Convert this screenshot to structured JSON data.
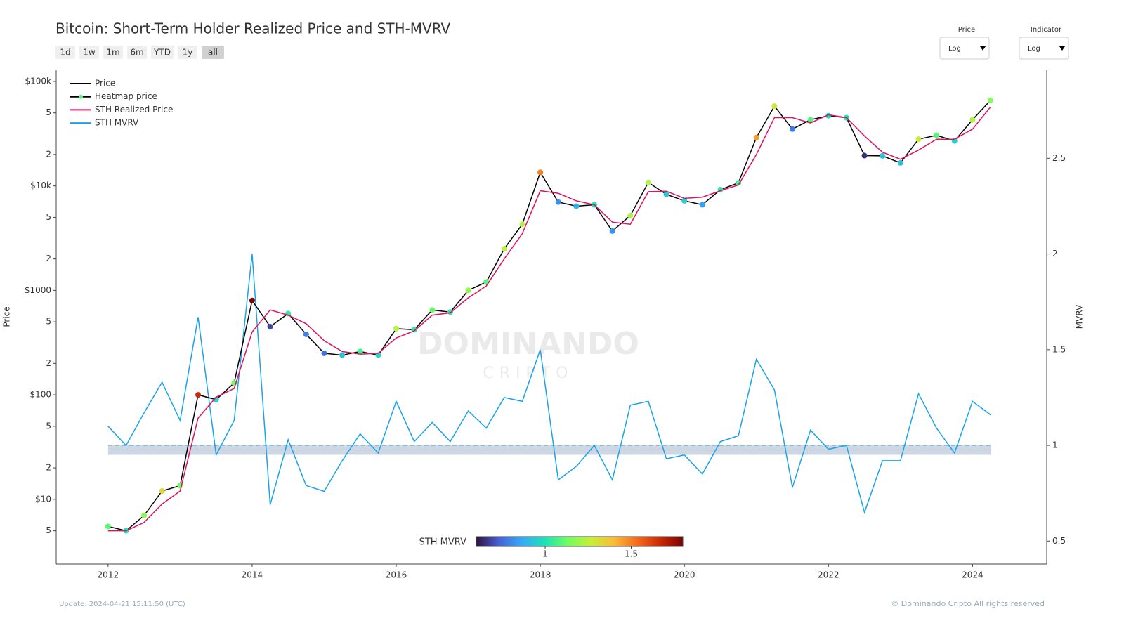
{
  "header": {
    "range_buttons": [
      "1d",
      "1w",
      "1m",
      "6m",
      "YTD",
      "1y",
      "all"
    ],
    "dropdowns": [
      {
        "label": "Price",
        "value": "Log"
      },
      {
        "label": "Indicator",
        "value": "Log"
      }
    ]
  },
  "watermark": {
    "main": "DOMINANDO",
    "sub": "CRIPTO"
  },
  "footer": {
    "update": "Update: 2024-04-21 15:11:50 (UTC)",
    "copyright": "© Dominando Cripto All rights reserved"
  },
  "chart_data": {
    "type": "line",
    "title": "Bitcoin: Short-Term Holder Realized Price and STH-MVRV",
    "ylabel": "Price",
    "y2label": "MVRV",
    "ylog": true,
    "x": [
      2012,
      2012.25,
      2012.5,
      2012.75,
      2013,
      2013.25,
      2013.5,
      2013.75,
      2014,
      2014.25,
      2014.5,
      2014.75,
      2015,
      2015.25,
      2015.5,
      2015.75,
      2016,
      2016.25,
      2016.5,
      2016.75,
      2017,
      2017.25,
      2017.5,
      2017.75,
      2018,
      2018.25,
      2018.5,
      2018.75,
      2019,
      2019.25,
      2019.5,
      2019.75,
      2020,
      2020.25,
      2020.5,
      2020.75,
      2021,
      2021.25,
      2021.5,
      2021.75,
      2022,
      2022.25,
      2022.5,
      2022.75,
      2023,
      2023.25,
      2023.5,
      2023.75,
      2024,
      2024.25
    ],
    "xlim": [
      2011.28,
      2025.03
    ],
    "xticks": [
      2012,
      2014,
      2016,
      2018,
      2020,
      2022,
      2024
    ],
    "ylim": [
      2.4,
      128000
    ],
    "yticks": [
      {
        "value": 100000,
        "label": "$100k"
      },
      {
        "value": 50000,
        "label": "5"
      },
      {
        "value": 20000,
        "label": "2"
      },
      {
        "value": 10000,
        "label": "$10k"
      },
      {
        "value": 5000,
        "label": "5"
      },
      {
        "value": 2000,
        "label": "2"
      },
      {
        "value": 1000,
        "label": "$1000"
      },
      {
        "value": 500,
        "label": "5"
      },
      {
        "value": 200,
        "label": "2"
      },
      {
        "value": 100,
        "label": "$100"
      },
      {
        "value": 50,
        "label": "5"
      },
      {
        "value": 20,
        "label": "2"
      },
      {
        "value": 10,
        "label": "$10"
      },
      5
    ],
    "y2lim": [
      0.38,
      2.96
    ],
    "y2ticks": [
      0.5,
      1,
      1.5,
      2,
      2.5
    ],
    "series": [
      {
        "name": "Price",
        "color": "#000000",
        "values": [
          5.5,
          5,
          7,
          12,
          13.5,
          100,
          90,
          130,
          800,
          450,
          600,
          380,
          250,
          240,
          260,
          240,
          430,
          420,
          650,
          620,
          1000,
          1200,
          2500,
          4300,
          13500,
          7000,
          6400,
          6600,
          3700,
          5200,
          10800,
          8300,
          7200,
          6600,
          9200,
          10700,
          29000,
          58000,
          35000,
          43000,
          47000,
          45000,
          19500,
          19400,
          16600,
          28000,
          30500,
          27000,
          43000,
          66000
        ]
      },
      {
        "name": "STH Realized Price",
        "color": "#e0115f",
        "values": [
          5,
          5,
          6,
          9,
          12,
          60,
          95,
          115,
          400,
          650,
          580,
          480,
          330,
          260,
          245,
          250,
          350,
          410,
          580,
          610,
          850,
          1100,
          2000,
          3500,
          9000,
          8500,
          7200,
          6600,
          4500,
          4300,
          8800,
          8900,
          7600,
          7800,
          9000,
          10200,
          20000,
          45000,
          45000,
          40000,
          48000,
          45000,
          30000,
          21000,
          18000,
          22000,
          28000,
          28000,
          35000,
          57000
        ]
      },
      {
        "name": "STH MVRV",
        "color": "#1aa3e8",
        "axis": "y2",
        "values": [
          1.1,
          1.0,
          1.17,
          1.33,
          1.13,
          1.67,
          0.95,
          1.13,
          2.0,
          0.69,
          1.03,
          0.79,
          0.76,
          0.92,
          1.06,
          0.96,
          1.23,
          1.02,
          1.12,
          1.02,
          1.18,
          1.09,
          1.25,
          1.23,
          1.5,
          0.82,
          0.89,
          1.0,
          0.82,
          1.21,
          1.23,
          0.93,
          0.95,
          0.85,
          1.02,
          1.05,
          1.45,
          1.29,
          0.78,
          1.08,
          0.98,
          1.0,
          0.65,
          0.92,
          0.92,
          1.27,
          1.09,
          0.96,
          1.23,
          1.16
        ]
      }
    ],
    "heatmap": {
      "name": "Heatmap price",
      "colorbar_title": "STH MVRV",
      "colorbar_range": [
        0.6,
        1.8
      ],
      "colorbar_ticks": [
        1,
        1.5
      ],
      "colorscale": [
        "#30123b",
        "#4662d7",
        "#36aaf9",
        "#1ae4b6",
        "#72fe5e",
        "#c7ef34",
        "#fabb39",
        "#f66b19",
        "#cb2a04",
        "#7a0403"
      ]
    },
    "reference": {
      "value": 1,
      "band": [
        0.98,
        1
      ]
    }
  }
}
